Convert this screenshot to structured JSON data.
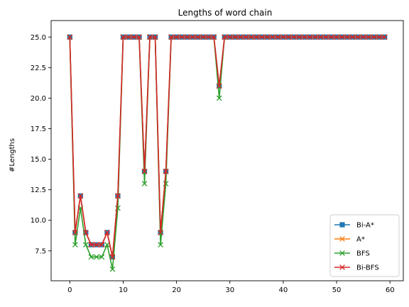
{
  "chart_data": {
    "type": "line",
    "title": "Lengths of word chain",
    "xlabel": "",
    "ylabel": "#Lengths",
    "xlim": [
      -3.5,
      62.5
    ],
    "ylim": [
      5.05,
      26.35
    ],
    "xticks": [
      0,
      10,
      20,
      30,
      40,
      50,
      60
    ],
    "xtick_labels": [
      "0",
      "10",
      "20",
      "30",
      "40",
      "50",
      "60"
    ],
    "yticks": [
      7.5,
      10.0,
      12.5,
      15.0,
      17.5,
      20.0,
      22.5,
      25.0
    ],
    "ytick_labels": [
      "7.5",
      "10.0",
      "12.5",
      "15.0",
      "17.5",
      "20.0",
      "22.5",
      "25.0"
    ],
    "grid": false,
    "legend_position": "lower right",
    "x": [
      0,
      1,
      2,
      3,
      4,
      5,
      6,
      7,
      8,
      9,
      10,
      11,
      12,
      13,
      14,
      15,
      16,
      17,
      18,
      19,
      20,
      21,
      22,
      23,
      24,
      25,
      26,
      27,
      28,
      29,
      30,
      31,
      32,
      33,
      34,
      35,
      36,
      37,
      38,
      39,
      40,
      41,
      42,
      43,
      44,
      45,
      46,
      47,
      48,
      49,
      50,
      51,
      52,
      53,
      54,
      55,
      56,
      57,
      58,
      59
    ],
    "series": [
      {
        "name": "Bi-A*",
        "color": "#1f77b4",
        "marker": "square",
        "values": [
          25,
          9,
          12,
          9,
          8,
          8,
          8,
          9,
          7,
          12,
          25,
          25,
          25,
          25,
          14,
          25,
          25,
          9,
          14,
          25,
          25,
          25,
          25,
          25,
          25,
          25,
          25,
          25,
          21,
          25,
          25,
          25,
          25,
          25,
          25,
          25,
          25,
          25,
          25,
          25,
          25,
          25,
          25,
          25,
          25,
          25,
          25,
          25,
          25,
          25,
          25,
          25,
          25,
          25,
          25,
          25,
          25,
          25,
          25,
          25
        ]
      },
      {
        "name": "A*",
        "color": "#ff7f0e",
        "marker": "x",
        "values": [
          25,
          9,
          12,
          9,
          8,
          8,
          8,
          9,
          7,
          12,
          25,
          25,
          25,
          25,
          14,
          25,
          25,
          9,
          14,
          25,
          25,
          25,
          25,
          25,
          25,
          25,
          25,
          25,
          21,
          25,
          25,
          25,
          25,
          25,
          25,
          25,
          25,
          25,
          25,
          25,
          25,
          25,
          25,
          25,
          25,
          25,
          25,
          25,
          25,
          25,
          25,
          25,
          25,
          25,
          25,
          25,
          25,
          25,
          25,
          25
        ]
      },
      {
        "name": "BFS",
        "color": "#2ca02c",
        "marker": "x",
        "values": [
          25,
          8,
          11,
          8,
          7,
          7,
          7,
          8,
          6,
          11,
          25,
          25,
          25,
          25,
          13,
          25,
          25,
          8,
          13,
          25,
          25,
          25,
          25,
          25,
          25,
          25,
          25,
          25,
          20,
          25,
          25,
          25,
          25,
          25,
          25,
          25,
          25,
          25,
          25,
          25,
          25,
          25,
          25,
          25,
          25,
          25,
          25,
          25,
          25,
          25,
          25,
          25,
          25,
          25,
          25,
          25,
          25,
          25,
          25,
          25
        ]
      },
      {
        "name": "Bi-BFS",
        "color": "#d62728",
        "marker": "x",
        "values": [
          25,
          9,
          12,
          9,
          8,
          8,
          8,
          9,
          7,
          12,
          25,
          25,
          25,
          25,
          14,
          25,
          25,
          9,
          14,
          25,
          25,
          25,
          25,
          25,
          25,
          25,
          25,
          25,
          21,
          25,
          25,
          25,
          25,
          25,
          25,
          25,
          25,
          25,
          25,
          25,
          25,
          25,
          25,
          25,
          25,
          25,
          25,
          25,
          25,
          25,
          25,
          25,
          25,
          25,
          25,
          25,
          25,
          25,
          25,
          25
        ]
      }
    ]
  }
}
